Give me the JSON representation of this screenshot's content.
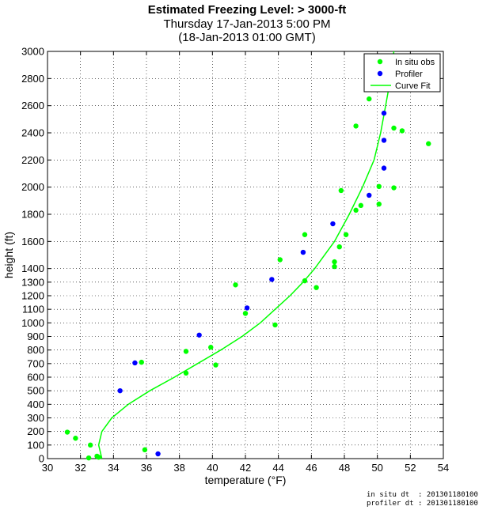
{
  "chart_data": {
    "type": "scatter",
    "title": "Estimated Freezing Level: > 3000-ft",
    "subtitle_1": "Thursday 17-Jan-2013  5:00 PM",
    "subtitle_2": "(18-Jan-2013 01:00 GMT)",
    "xlabel": "temperature (°F)",
    "ylabel": "height (ft)",
    "xlim": [
      30,
      54
    ],
    "ylim": [
      0,
      3000
    ],
    "x_ticks": [
      30,
      32,
      34,
      36,
      38,
      40,
      42,
      44,
      46,
      48,
      50,
      52,
      54
    ],
    "y_ticks": [
      0,
      100,
      200,
      300,
      400,
      500,
      600,
      700,
      800,
      900,
      1000,
      1100,
      1200,
      1300,
      1400,
      1600,
      1800,
      2000,
      2200,
      2400,
      2600,
      2800,
      3000
    ],
    "grid": true,
    "legend_position": "top-right",
    "series": [
      {
        "name": "In situ obs",
        "color": "#00ff00",
        "points": [
          [
            31.2,
            195
          ],
          [
            31.7,
            150
          ],
          [
            32.6,
            100
          ],
          [
            32.5,
            5
          ],
          [
            33.0,
            18
          ],
          [
            33.1,
            10
          ],
          [
            35.9,
            65
          ],
          [
            35.7,
            710
          ],
          [
            38.4,
            630
          ],
          [
            38.4,
            790
          ],
          [
            39.9,
            820
          ],
          [
            40.2,
            690
          ],
          [
            41.4,
            1280
          ],
          [
            42.0,
            1070
          ],
          [
            43.8,
            985
          ],
          [
            44.1,
            1465
          ],
          [
            45.6,
            1310
          ],
          [
            45.6,
            1650
          ],
          [
            46.3,
            1260
          ],
          [
            47.4,
            1415
          ],
          [
            47.4,
            1450
          ],
          [
            47.7,
            1560
          ],
          [
            48.1,
            1650
          ],
          [
            47.8,
            1975
          ],
          [
            48.7,
            1830
          ],
          [
            49.0,
            1865
          ],
          [
            48.7,
            2450
          ],
          [
            50.1,
            1875
          ],
          [
            50.1,
            2005
          ],
          [
            51.0,
            1995
          ],
          [
            49.5,
            2650
          ],
          [
            51.0,
            2435
          ],
          [
            51.5,
            2415
          ],
          [
            53.1,
            2320
          ]
        ]
      },
      {
        "name": "Profiler",
        "color": "#0000ff",
        "points": [
          [
            36.7,
            35
          ],
          [
            34.4,
            500
          ],
          [
            35.3,
            705
          ],
          [
            39.2,
            910
          ],
          [
            42.1,
            1110
          ],
          [
            43.6,
            1320
          ],
          [
            45.5,
            1520
          ],
          [
            47.3,
            1730
          ],
          [
            49.5,
            1940
          ],
          [
            50.4,
            2140
          ],
          [
            50.4,
            2345
          ],
          [
            50.4,
            2545
          ]
        ]
      },
      {
        "name": "Curve Fit",
        "color": "#00ff00",
        "style": "line",
        "points": [
          [
            33.3,
            0
          ],
          [
            33.1,
            100
          ],
          [
            33.3,
            200
          ],
          [
            33.9,
            300
          ],
          [
            34.9,
            400
          ],
          [
            36.2,
            500
          ],
          [
            37.7,
            600
          ],
          [
            39.1,
            700
          ],
          [
            40.5,
            800
          ],
          [
            41.8,
            900
          ],
          [
            42.9,
            1000
          ],
          [
            43.8,
            1100
          ],
          [
            44.7,
            1200
          ],
          [
            45.5,
            1300
          ],
          [
            46.2,
            1400
          ],
          [
            47.4,
            1600
          ],
          [
            48.3,
            1800
          ],
          [
            49.1,
            2000
          ],
          [
            49.8,
            2200
          ],
          [
            50.2,
            2400
          ],
          [
            50.5,
            2600
          ],
          [
            50.8,
            2800
          ],
          [
            51.0,
            3000
          ]
        ]
      }
    ]
  },
  "footer": {
    "line1": "in situ dt  : 201301180100",
    "line2": "profiler dt : 201301180100"
  }
}
